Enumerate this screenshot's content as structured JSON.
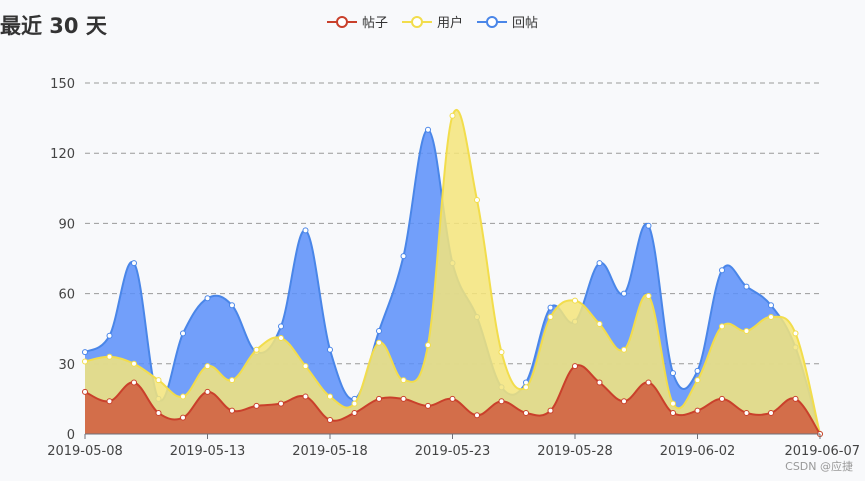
{
  "chart_data": {
    "type": "area",
    "title": "最近 30 天",
    "legend_position": "top-center",
    "x": [
      "2019-05-08",
      "2019-05-09",
      "2019-05-10",
      "2019-05-11",
      "2019-05-12",
      "2019-05-13",
      "2019-05-14",
      "2019-05-15",
      "2019-05-16",
      "2019-05-17",
      "2019-05-18",
      "2019-05-19",
      "2019-05-20",
      "2019-05-21",
      "2019-05-22",
      "2019-05-23",
      "2019-05-24",
      "2019-05-25",
      "2019-05-26",
      "2019-05-27",
      "2019-05-28",
      "2019-05-29",
      "2019-05-30",
      "2019-05-31",
      "2019-06-01",
      "2019-06-02",
      "2019-06-03",
      "2019-06-04",
      "2019-06-05",
      "2019-06-06",
      "2019-06-07"
    ],
    "x_tick_labels": [
      "2019-05-08",
      "2019-05-13",
      "2019-05-18",
      "2019-05-23",
      "2019-05-28",
      "2019-06-02",
      "2019-06-07"
    ],
    "y_ticks": [
      0,
      30,
      60,
      90,
      120,
      150
    ],
    "ylim": [
      0,
      150
    ],
    "grid": "horizontal-dashed",
    "series": [
      {
        "name": "回帖",
        "color": "#5b8ff9",
        "line_color": "#4a86e8",
        "values": [
          35,
          42,
          73,
          15,
          43,
          58,
          55,
          35,
          46,
          87,
          36,
          15,
          44,
          76,
          130,
          73,
          50,
          20,
          22,
          54,
          48,
          73,
          60,
          89,
          26,
          27,
          70,
          63,
          55,
          37,
          0
        ]
      },
      {
        "name": "用户",
        "color": "#f5e57a",
        "line_color": "#f2dd4c",
        "values": [
          31,
          33,
          30,
          23,
          16,
          29,
          23,
          36,
          41,
          29,
          16,
          13,
          39,
          23,
          38,
          136,
          100,
          35,
          20,
          50,
          57,
          47,
          36,
          59,
          13,
          23,
          46,
          44,
          50,
          43,
          0
        ]
      },
      {
        "name": "帖子",
        "color": "#d05b3e",
        "line_color": "#c9402b",
        "values": [
          18,
          14,
          22,
          9,
          7,
          18,
          10,
          12,
          13,
          16,
          6,
          9,
          15,
          15,
          12,
          15,
          8,
          14,
          9,
          10,
          29,
          22,
          14,
          22,
          9,
          10,
          15,
          9,
          9,
          15,
          0
        ]
      }
    ]
  },
  "watermark": "CSDN @应捷"
}
